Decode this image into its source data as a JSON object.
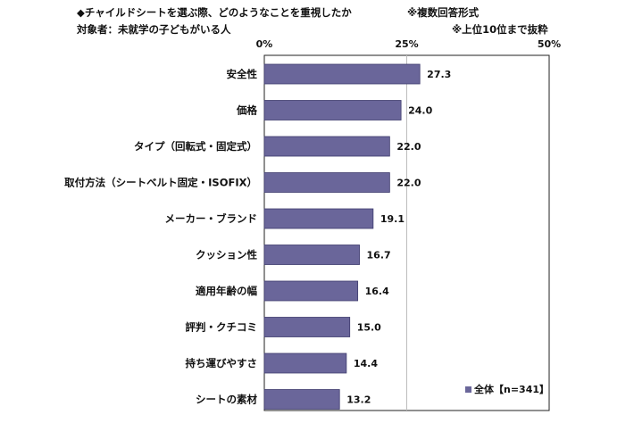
{
  "header": {
    "title": "◆チャイルドシートを選ぶ際、どのようなことを重視したか",
    "answer_format": "※複数回答形式",
    "subject": "対象者：未就学の子どもがいる人",
    "note": "※上位10位まで抜粋"
  },
  "chart_data": {
    "type": "bar",
    "orientation": "horizontal",
    "categories": [
      "安全性",
      "価格",
      "タイプ（回転式・固定式）",
      "取付方法（シートベルト固定・ISOFIX）",
      "メーカー・ブランド",
      "クッション性",
      "適用年齢の幅",
      "評判・クチコミ",
      "持ち運びやすさ",
      "シートの素材"
    ],
    "series": [
      {
        "name": "全体【n=341】",
        "values": [
          27.3,
          24.0,
          22.0,
          22.0,
          19.1,
          16.7,
          16.4,
          15.0,
          14.4,
          13.2
        ]
      }
    ],
    "value_labels": [
      "27.3",
      "24.0",
      "22.0",
      "22.0",
      "19.1",
      "16.7",
      "16.4",
      "15.0",
      "14.4",
      "13.2"
    ],
    "xlim": [
      0,
      50
    ],
    "x_ticks": [
      "0%",
      "25%",
      "50%"
    ],
    "grid": true,
    "legend_position": "bottom-right",
    "colors": {
      "bar": "#6a669a",
      "bar_border": "#3f3c6e",
      "frame": "#222222",
      "grid": "#bdbdbd"
    }
  }
}
